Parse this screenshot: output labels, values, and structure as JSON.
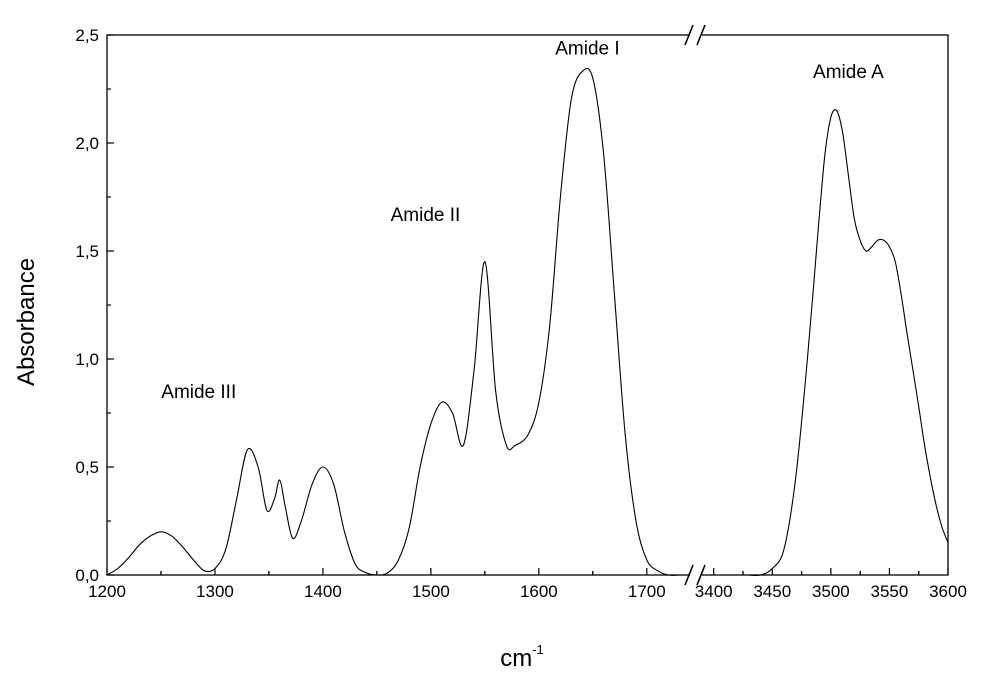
{
  "chart_data": {
    "type": "line",
    "title": "",
    "xlabel": "cm",
    "xlabel_superscript": "-1",
    "ylabel": "Absorbance",
    "ylim": [
      0,
      2.5
    ],
    "yticks": [
      0,
      0.5,
      1.0,
      1.5,
      2.0,
      2.5
    ],
    "ytick_labels": [
      "0,0",
      "0,5",
      "1,0",
      "1,5",
      "2,0",
      "2,5"
    ],
    "x_axis_broken": true,
    "x_segments": [
      {
        "range": [
          1200,
          1740
        ],
        "ticks": [
          1200,
          1300,
          1400,
          1500,
          1600,
          1700
        ],
        "tick_labels": [
          "1200",
          "1300",
          "1400",
          "1500",
          "1600",
          "1700"
        ]
      },
      {
        "range": [
          3390,
          3600
        ],
        "ticks": [
          3400,
          3450,
          3500,
          3550,
          3600
        ],
        "tick_labels": [
          "3400",
          "3450",
          "3500",
          "3550",
          "3600"
        ]
      }
    ],
    "grid": false,
    "legend": "none",
    "series": [
      {
        "segment": 0,
        "x": [
          1200,
          1210,
          1220,
          1230,
          1240,
          1250,
          1260,
          1270,
          1280,
          1290,
          1300,
          1310,
          1320,
          1330,
          1340,
          1348,
          1355,
          1360,
          1365,
          1372,
          1380,
          1390,
          1400,
          1410,
          1420,
          1430,
          1440,
          1450,
          1460,
          1470,
          1480,
          1490,
          1500,
          1510,
          1520,
          1530,
          1540,
          1550,
          1560,
          1570,
          1578,
          1590,
          1600,
          1610,
          1620,
          1630,
          1640,
          1650,
          1660,
          1670,
          1680,
          1690,
          1700,
          1710,
          1720,
          1730,
          1740
        ],
        "y": [
          0.0,
          0.03,
          0.08,
          0.14,
          0.18,
          0.2,
          0.18,
          0.13,
          0.07,
          0.02,
          0.03,
          0.12,
          0.35,
          0.58,
          0.5,
          0.3,
          0.35,
          0.44,
          0.32,
          0.17,
          0.25,
          0.42,
          0.5,
          0.42,
          0.2,
          0.05,
          0.01,
          0.0,
          0.01,
          0.07,
          0.22,
          0.5,
          0.7,
          0.8,
          0.75,
          0.6,
          0.95,
          1.45,
          0.85,
          0.6,
          0.6,
          0.65,
          0.8,
          1.15,
          1.75,
          2.2,
          2.33,
          2.3,
          1.95,
          1.3,
          0.65,
          0.25,
          0.07,
          0.02,
          0.0,
          0.0,
          0.0
        ]
      },
      {
        "segment": 1,
        "x": [
          3430,
          3440,
          3450,
          3460,
          3470,
          3480,
          3490,
          3495,
          3500,
          3505,
          3510,
          3515,
          3520,
          3525,
          3530,
          3535,
          3540,
          3545,
          3550,
          3555,
          3560,
          3565,
          3570,
          3575,
          3580,
          3585,
          3590,
          3595,
          3600
        ],
        "y": [
          0.0,
          0.0,
          0.03,
          0.12,
          0.45,
          1.0,
          1.65,
          1.95,
          2.12,
          2.15,
          2.05,
          1.85,
          1.65,
          1.55,
          1.5,
          1.52,
          1.55,
          1.55,
          1.52,
          1.45,
          1.3,
          1.12,
          0.95,
          0.78,
          0.6,
          0.45,
          0.32,
          0.22,
          0.15
        ]
      }
    ],
    "annotations": [
      {
        "text": "Amide III",
        "x": 1285,
        "y": 0.82,
        "segment": 0
      },
      {
        "text": "Amide II",
        "x": 1495,
        "y": 1.64,
        "segment": 0
      },
      {
        "text": "Amide I",
        "x": 1645,
        "y": 2.41,
        "segment": 0
      },
      {
        "text": "Amide A",
        "x": 3515,
        "y": 2.3,
        "segment": 1
      }
    ]
  }
}
